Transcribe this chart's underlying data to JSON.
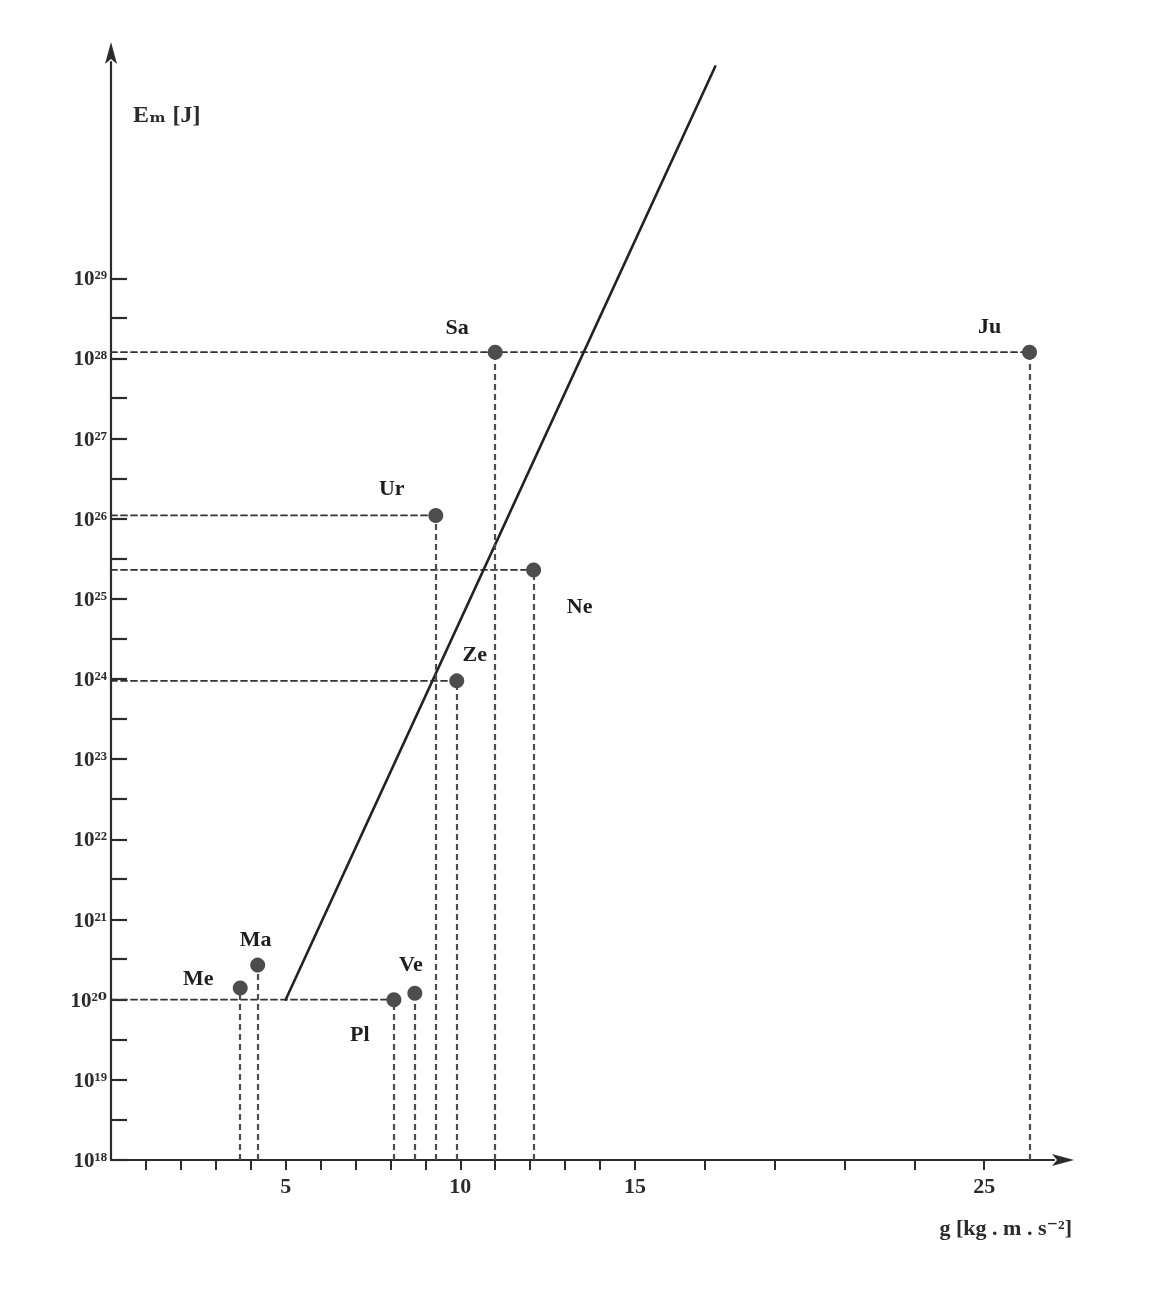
{
  "chart_data": {
    "type": "lollipop",
    "xlabel": "g [kg . m . s⁻²]",
    "ylabel": "Eₘ [J]",
    "log": "y",
    "grid": false,
    "legend": false,
    "marker": "circle",
    "xlim": [
      0,
      27
    ],
    "ylim": [
      1e+18,
      5e+31
    ],
    "xticks": [
      {
        "value": 1,
        "label": null
      },
      {
        "value": 2,
        "label": null
      },
      {
        "value": 3,
        "label": null
      },
      {
        "value": 4,
        "label": null
      },
      5,
      {
        "value": 6,
        "label": null
      },
      {
        "value": 7,
        "label": null
      },
      {
        "value": 8,
        "label": null
      },
      {
        "value": 9,
        "label": null
      },
      10,
      {
        "value": 11,
        "label": null
      },
      {
        "value": 12,
        "label": null
      },
      {
        "value": 13,
        "label": null
      },
      {
        "value": 14,
        "label": null
      },
      15,
      {
        "value": 17,
        "label": null
      },
      {
        "value": 19,
        "label": null
      },
      {
        "value": 21,
        "label": null
      },
      {
        "value": 23,
        "label": null
      },
      25
    ],
    "yticks": [
      {
        "value": 1e+18,
        "label": "10¹⁸"
      },
      {
        "value": 3.2e+18,
        "label": null
      },
      {
        "value": 1e+19,
        "label": "10¹⁹"
      },
      {
        "value": 3.2e+19,
        "label": null
      },
      {
        "value": 1e+20,
        "label": "10²⁰"
      },
      {
        "value": 3.2e+20,
        "label": null
      },
      {
        "value": 1e+21,
        "label": "10²¹"
      },
      {
        "value": 3.2e+21,
        "label": null
      },
      {
        "value": 1e+22,
        "label": "10²²"
      },
      {
        "value": 3.2e+22,
        "label": null
      },
      {
        "value": 1e+23,
        "label": "10²³"
      },
      {
        "value": 3.2e+23,
        "label": null
      },
      {
        "value": 1e+24,
        "label": "10²⁴"
      },
      {
        "value": 3.2e+24,
        "label": null
      },
      {
        "value": 1e+25,
        "label": "10²⁵"
      },
      {
        "value": 3.2e+25,
        "label": null
      },
      {
        "value": 1e+26,
        "label": "10²⁶"
      },
      {
        "value": 3.2e+26,
        "label": null
      },
      {
        "value": 1e+27,
        "label": "10²⁷"
      },
      {
        "value": 3.2e+27,
        "label": null
      },
      {
        "value": 1e+28,
        "label": "10²⁸"
      },
      {
        "value": 3.2e+28,
        "label": null
      },
      {
        "value": 1e+29,
        "label": "10²⁹"
      }
    ],
    "series": [
      {
        "type": "line",
        "x": [
          0,
          26.3
        ],
        "values": [
          1.2e+28,
          1.2e+28
        ],
        "color": "#333333",
        "line_style": "dashed",
        "marker": "none"
      },
      {
        "type": "line",
        "x": [
          0,
          9.3
        ],
        "values": [
          1.1e+26,
          1.1e+26
        ],
        "color": "#333333",
        "line_style": "dashed",
        "marker": "none"
      },
      {
        "type": "line",
        "x": [
          0,
          12.1
        ],
        "values": [
          2.3e+25,
          2.3e+25
        ],
        "color": "#333333",
        "line_style": "dashed",
        "marker": "none"
      },
      {
        "type": "line",
        "x": [
          0,
          9.9
        ],
        "values": [
          9.5e+23,
          9.5e+23
        ],
        "color": "#333333",
        "line_style": "dashed",
        "marker": "none"
      },
      {
        "type": "line",
        "x": [
          0,
          8.1
        ],
        "values": [
          1e+20,
          1e+20
        ],
        "color": "#333333",
        "line_style": "dashed",
        "marker": "none"
      },
      {
        "type": "line",
        "x": [
          5,
          17.3
        ],
        "values": [
          1e+20,
          4.4e+31
        ],
        "color": "#222222",
        "line_style": "solid",
        "marker": "none"
      },
      {
        "name": "Me",
        "x": [
          3.7
        ],
        "values": [
          1.4e+20
        ],
        "color": "#4d4d4d",
        "line_style": "dashed"
      },
      {
        "name": "Ma",
        "x": [
          4.2
        ],
        "values": [
          2.7e+20
        ],
        "color": "#4d4d4d",
        "line_style": "dashed"
      },
      {
        "name": "Pl",
        "x": [
          8.1
        ],
        "values": [
          1e+20
        ],
        "color": "#4d4d4d",
        "line_style": "dashed"
      },
      {
        "name": "Ve",
        "x": [
          8.7
        ],
        "values": [
          1.2e+20
        ],
        "color": "#4d4d4d",
        "line_style": "dashed"
      },
      {
        "name": "Ur",
        "x": [
          9.3
        ],
        "values": [
          1.1e+26
        ],
        "color": "#4d4d4d",
        "line_style": "dashed"
      },
      {
        "name": "Ze",
        "x": [
          9.9
        ],
        "values": [
          9.5e+23
        ],
        "color": "#4d4d4d",
        "line_style": "dashed"
      },
      {
        "name": "Sa",
        "x": [
          11.0
        ],
        "values": [
          1.2e+28
        ],
        "color": "#4d4d4d",
        "line_style": "dashed"
      },
      {
        "name": "Ne",
        "x": [
          12.1
        ],
        "values": [
          2.3e+25
        ],
        "color": "#4d4d4d",
        "line_style": "dashed"
      },
      {
        "name": "Ju",
        "x": [
          26.3
        ],
        "values": [
          1.2e+28
        ],
        "color": "#4d4d4d",
        "line_style": "dashed"
      }
    ]
  }
}
